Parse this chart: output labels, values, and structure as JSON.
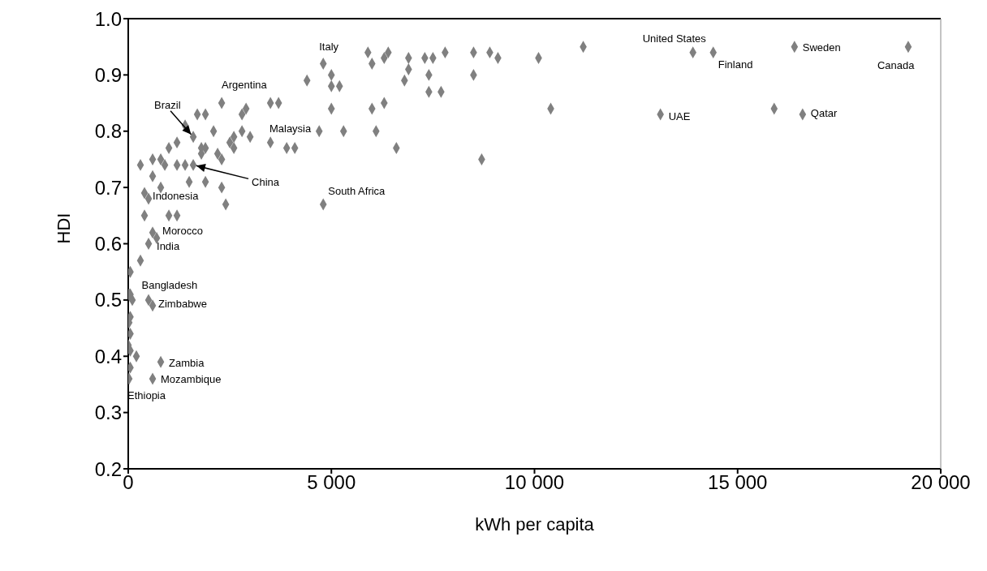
{
  "chart_data": {
    "type": "scatter",
    "xlabel": "kWh per capita",
    "ylabel": "HDI",
    "xlim": [
      0,
      20000
    ],
    "xticks": [
      0,
      {
        "value": 5000,
        "label": "5 000"
      },
      {
        "value": 10000,
        "label": "10 000"
      },
      {
        "value": 15000,
        "label": "15 000"
      },
      {
        "value": 20000,
        "label": "20 000"
      }
    ],
    "ylim": [
      0.2,
      1
    ],
    "yticks": [
      0.2,
      0.3,
      0.4,
      0.5,
      0.6,
      0.7,
      0.8,
      0.9,
      {
        "value": 1,
        "label": "1.0"
      }
    ],
    "grid": false,
    "marker": "diamond",
    "series": [
      {
        "color": "#808080",
        "x": [
          2300,
          1700,
          1900,
          1400,
          2100,
          1600,
          1000,
          1200,
          1800,
          1900,
          600,
          800,
          300,
          900,
          1200,
          1400,
          1600,
          1800,
          2200,
          2300,
          600,
          800,
          1500,
          1900,
          2300,
          2400,
          400,
          500,
          400,
          1000,
          1200,
          600,
          700,
          2500,
          2600,
          2800,
          3000,
          2600,
          2800,
          2900,
          3500,
          3700,
          3500,
          3900,
          4100,
          4400,
          500,
          300,
          50,
          50,
          20,
          100,
          500,
          600,
          50,
          20,
          50,
          0,
          50,
          200,
          50,
          20,
          800,
          600,
          4800,
          5000,
          5000,
          5200,
          5000,
          4700,
          5300,
          5900,
          6000,
          6300,
          6400,
          6000,
          6300,
          6100,
          6600,
          6900,
          6900,
          6800,
          7300,
          7500,
          7400,
          7400,
          7700,
          7800,
          8500,
          8500,
          8900,
          9100,
          10100,
          10400,
          8700,
          11200,
          4800,
          13900,
          14400,
          16400,
          19200,
          13100,
          15900,
          16600
        ],
        "values": [
          0.85,
          0.83,
          0.83,
          0.81,
          0.8,
          0.79,
          0.77,
          0.78,
          0.77,
          0.77,
          0.75,
          0.75,
          0.74,
          0.74,
          0.74,
          0.74,
          0.74,
          0.76,
          0.76,
          0.75,
          0.72,
          0.7,
          0.71,
          0.71,
          0.7,
          0.67,
          0.69,
          0.68,
          0.65,
          0.65,
          0.65,
          0.62,
          0.61,
          0.78,
          0.79,
          0.8,
          0.79,
          0.77,
          0.83,
          0.84,
          0.85,
          0.85,
          0.78,
          0.77,
          0.77,
          0.89,
          0.6,
          0.57,
          0.55,
          0.51,
          0.51,
          0.5,
          0.5,
          0.49,
          0.47,
          0.46,
          0.44,
          0.42,
          0.41,
          0.4,
          0.38,
          0.36,
          0.39,
          0.36,
          0.92,
          0.9,
          0.88,
          0.88,
          0.84,
          0.8,
          0.8,
          0.94,
          0.92,
          0.93,
          0.94,
          0.84,
          0.85,
          0.8,
          0.77,
          0.93,
          0.91,
          0.89,
          0.93,
          0.93,
          0.9,
          0.87,
          0.87,
          0.94,
          0.94,
          0.9,
          0.94,
          0.93,
          0.93,
          0.84,
          0.75,
          0.95,
          0.67,
          0.94,
          0.94,
          0.95,
          0.95,
          0.83,
          0.84,
          0.83
        ]
      }
    ],
    "annotations": [
      {
        "text": "Italy",
        "x": 4800,
        "y": 0.92
      },
      {
        "text": "Argentina",
        "x": 2300,
        "y": 0.85
      },
      {
        "text": "Brazil",
        "x": 1600,
        "y": 0.79
      },
      {
        "text": "Malaysia",
        "x": 4700,
        "y": 0.8
      },
      {
        "text": "China",
        "x": 1600,
        "y": 0.74
      },
      {
        "text": "Indonesia",
        "x": 400,
        "y": 0.69
      },
      {
        "text": "Morocco",
        "x": 1000,
        "y": 0.65
      },
      {
        "text": "India",
        "x": 500,
        "y": 0.6
      },
      {
        "text": "Bangladesh",
        "x": 50,
        "y": 0.51
      },
      {
        "text": "Zimbabwe",
        "x": 500,
        "y": 0.5
      },
      {
        "text": "Zambia",
        "x": 800,
        "y": 0.39
      },
      {
        "text": "Mozambique",
        "x": 600,
        "y": 0.36
      },
      {
        "text": "Ethiopia",
        "x": 20,
        "y": 0.36
      },
      {
        "text": "South Africa",
        "x": 4800,
        "y": 0.67
      },
      {
        "text": "UAE",
        "x": 13100,
        "y": 0.83
      },
      {
        "text": "Qatar",
        "x": 16600,
        "y": 0.83
      },
      {
        "text": "United States",
        "x": 13900,
        "y": 0.94
      },
      {
        "text": "Finland",
        "x": 14400,
        "y": 0.94
      },
      {
        "text": "Sweden",
        "x": 16400,
        "y": 0.95
      },
      {
        "text": "Canada",
        "x": 19200,
        "y": 0.95
      }
    ]
  }
}
